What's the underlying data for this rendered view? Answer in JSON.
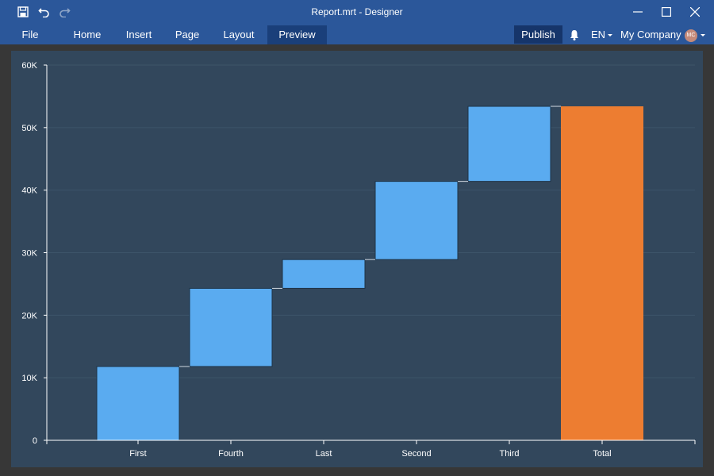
{
  "window": {
    "title": "Report.mrt - Designer"
  },
  "quick_access": {
    "save_icon": "save-icon",
    "undo_icon": "undo-icon",
    "redo_icon": "redo-icon"
  },
  "ribbon": {
    "file_label": "File",
    "tabs": [
      {
        "label": "Home"
      },
      {
        "label": "Insert"
      },
      {
        "label": "Page"
      },
      {
        "label": "Layout"
      },
      {
        "label": "Preview",
        "active": true
      }
    ],
    "publish_label": "Publish",
    "language": "EN",
    "company": "My Company",
    "avatar_initials": "MC"
  },
  "colors": {
    "titlebar": "#2b579a",
    "panel": "#32475c",
    "bar": "#5aabf0",
    "total_bar": "#ed7d31",
    "grid": "#3d5469",
    "axis": "#ffffff"
  },
  "chart_data": {
    "type": "waterfall",
    "categories": [
      "First",
      "Fourth",
      "Last",
      "Second",
      "Third",
      "Total"
    ],
    "values": [
      11800,
      12500,
      4600,
      12500,
      12000,
      53400
    ],
    "is_total": [
      false,
      false,
      false,
      false,
      false,
      true
    ],
    "ylim": [
      0,
      60000
    ],
    "yticks": [
      0,
      10000,
      20000,
      30000,
      40000,
      50000,
      60000
    ],
    "ytick_labels": [
      "0",
      "10K",
      "20K",
      "30K",
      "40K",
      "50K",
      "60K"
    ],
    "grid": true,
    "legend": "none"
  }
}
